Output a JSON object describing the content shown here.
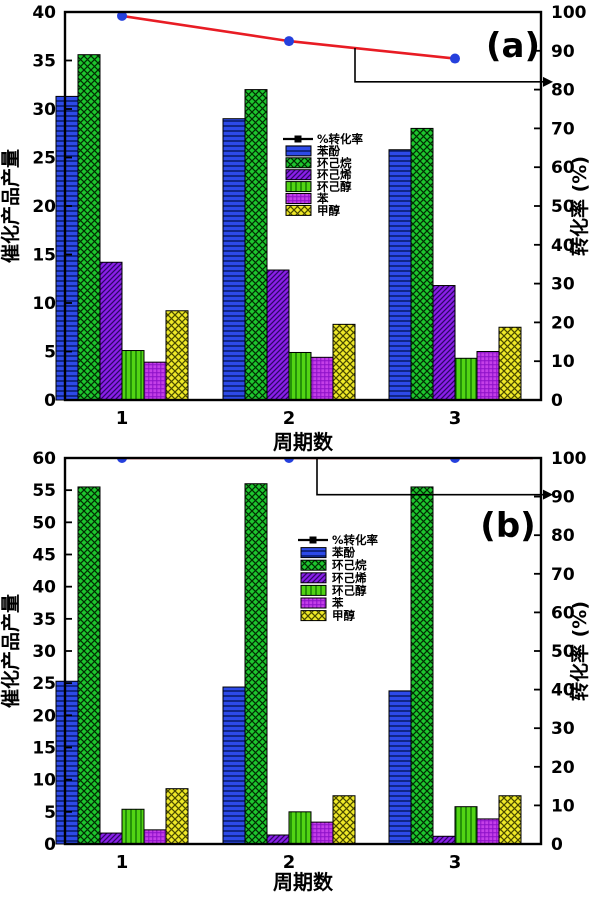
{
  "page": {
    "background": "#ffffff"
  },
  "chart_data": [
    {
      "id": "a",
      "type": "bar",
      "panel_label": "(a)",
      "xlabel": "周期数",
      "categories": [
        "1",
        "2",
        "3"
      ],
      "left_axis": {
        "label": "催化产品产量",
        "min": 0,
        "max": 40,
        "tick_step": 5
      },
      "right_axis": {
        "label": "转化率 (%)",
        "min": 0,
        "max": 100,
        "tick_step": 10
      },
      "legend_position": "inside-center",
      "grid": false,
      "bar_series": [
        {
          "key": "phenol",
          "label": "苯酚",
          "color": "#2d4ae8",
          "hatch": "hlines",
          "hatch_color": "#00114d",
          "values": [
            31.3,
            29.0,
            25.8
          ]
        },
        {
          "key": "cyclohexane",
          "label": "环己烷",
          "color": "#1dc62e",
          "hatch": "diagcross",
          "hatch_color": "#022d02",
          "values": [
            35.6,
            32.0,
            28.0
          ]
        },
        {
          "key": "cyclohexene",
          "label": "环己烯",
          "color": "#8a1fe8",
          "hatch": "diag",
          "hatch_color": "#2d0566",
          "values": [
            14.2,
            13.4,
            11.8
          ]
        },
        {
          "key": "cyclohexanol",
          "label": "环己醇",
          "color": "#52d414",
          "hatch": "vlines",
          "hatch_color": "#0a6b00",
          "values": [
            5.1,
            4.9,
            4.3
          ]
        },
        {
          "key": "benzene",
          "label": "苯",
          "color": "#c43fe8",
          "hatch": "grid",
          "hatch_color": "#8d10c9",
          "values": [
            3.9,
            4.4,
            5.0
          ]
        },
        {
          "key": "methanol",
          "label": "甲醇",
          "color": "#efe928",
          "hatch": "diagcross",
          "hatch_color": "#4a4a00",
          "values": [
            9.2,
            7.8,
            7.5
          ]
        }
      ],
      "line_series": {
        "key": "conversion",
        "label": "%转化率",
        "values": [
          99,
          92.5,
          88
        ],
        "line_color": "#e81c24",
        "marker_color": "#2540dd"
      }
    },
    {
      "id": "b",
      "type": "bar",
      "panel_label": "(b)",
      "xlabel": "周期数",
      "categories": [
        "1",
        "2",
        "3"
      ],
      "left_axis": {
        "label": "催化产品产量",
        "min": 0,
        "max": 60,
        "tick_step": 5
      },
      "right_axis": {
        "label": "转化率 (%)",
        "min": 0,
        "max": 100,
        "tick_step": 10
      },
      "legend_position": "inside-center",
      "grid": false,
      "bar_series": [
        {
          "key": "phenol",
          "label": "苯酚",
          "color": "#2d4ae8",
          "hatch": "hlines",
          "hatch_color": "#00114d",
          "values": [
            25.3,
            24.4,
            23.8
          ]
        },
        {
          "key": "cyclohexane",
          "label": "环己烷",
          "color": "#1dc62e",
          "hatch": "diagcross",
          "hatch_color": "#022d02",
          "values": [
            55.5,
            56.0,
            55.5
          ]
        },
        {
          "key": "cyclohexene",
          "label": "环己烯",
          "color": "#8a1fe8",
          "hatch": "diag",
          "hatch_color": "#2d0566",
          "values": [
            1.7,
            1.4,
            1.2
          ]
        },
        {
          "key": "cyclohexanol",
          "label": "环己醇",
          "color": "#52d414",
          "hatch": "vlines",
          "hatch_color": "#0a6b00",
          "values": [
            5.4,
            5.0,
            5.8
          ]
        },
        {
          "key": "benzene",
          "label": "苯",
          "color": "#c43fe8",
          "hatch": "grid",
          "hatch_color": "#8d10c9",
          "values": [
            2.2,
            3.4,
            3.9
          ]
        },
        {
          "key": "methanol",
          "label": "甲醇",
          "color": "#efe928",
          "hatch": "diagcross",
          "hatch_color": "#4a4a00",
          "values": [
            8.6,
            7.5,
            7.5
          ]
        }
      ],
      "line_series": {
        "key": "conversion",
        "label": "%转化率",
        "values": [
          100,
          100,
          100
        ],
        "line_color": "#e81c24",
        "marker_color": "#2540dd"
      }
    }
  ]
}
